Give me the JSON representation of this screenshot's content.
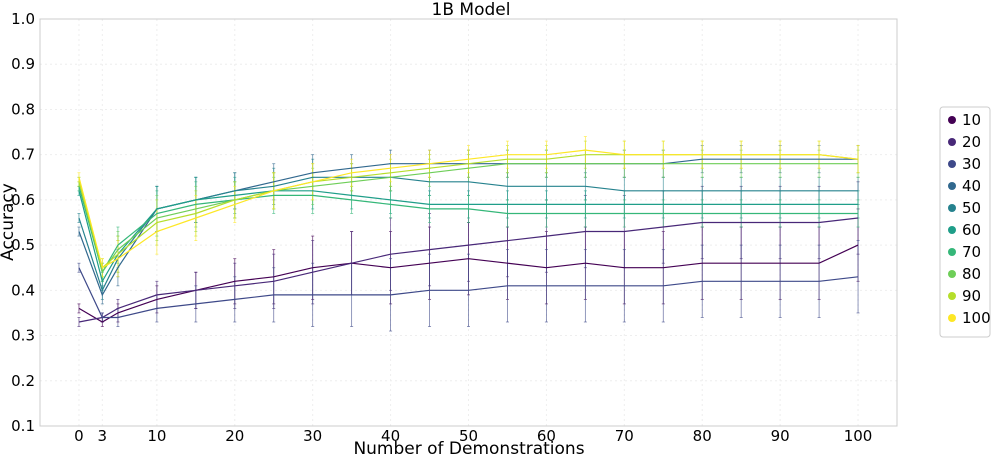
{
  "chart_data": {
    "type": "line",
    "title": "1B Model",
    "xlabel": "Number of Demonstrations",
    "ylabel": "Accuracy",
    "xlim": [
      -5,
      105
    ],
    "ylim": [
      0.1,
      1.0
    ],
    "xticks": [
      0,
      3,
      10,
      20,
      30,
      40,
      50,
      60,
      70,
      80,
      90,
      100
    ],
    "xtick_labels": [
      "0",
      "3",
      "10",
      "20",
      "30",
      "40",
      "50",
      "60",
      "70",
      "80",
      "90",
      "100"
    ],
    "yticks": [
      0.1,
      0.2,
      0.3,
      0.4,
      0.5,
      0.6,
      0.7,
      0.8,
      0.9,
      1.0
    ],
    "ytick_labels": [
      "0.1",
      "0.2",
      "0.3",
      "0.4",
      "0.5",
      "0.6",
      "0.7",
      "0.8",
      "0.9",
      "1.0"
    ],
    "grid": true,
    "error_bars": true,
    "legend_position": "right",
    "x": [
      0,
      3,
      5,
      10,
      15,
      20,
      25,
      30,
      35,
      40,
      45,
      50,
      55,
      60,
      65,
      70,
      75,
      80,
      85,
      90,
      95,
      100
    ],
    "series": [
      {
        "name": "10",
        "color": "#440154",
        "values": [
          0.36,
          0.33,
          0.35,
          0.38,
          0.4,
          0.42,
          0.43,
          0.45,
          0.46,
          0.45,
          0.46,
          0.47,
          0.46,
          0.45,
          0.46,
          0.45,
          0.45,
          0.46,
          0.46,
          0.46,
          0.46,
          0.5
        ],
        "errors": [
          0.01,
          0.01,
          0.02,
          0.03,
          0.04,
          0.05,
          0.06,
          0.07,
          0.07,
          0.08,
          0.08,
          0.08,
          0.08,
          0.08,
          0.08,
          0.08,
          0.08,
          0.08,
          0.08,
          0.08,
          0.08,
          0.08
        ]
      },
      {
        "name": "20",
        "color": "#482878",
        "values": [
          0.33,
          0.34,
          0.36,
          0.39,
          0.4,
          0.41,
          0.42,
          0.44,
          0.46,
          0.48,
          0.49,
          0.5,
          0.51,
          0.52,
          0.53,
          0.53,
          0.54,
          0.55,
          0.55,
          0.55,
          0.55,
          0.56
        ],
        "errors": [
          0.01,
          0.01,
          0.02,
          0.03,
          0.04,
          0.05,
          0.06,
          0.07,
          0.07,
          0.08,
          0.08,
          0.08,
          0.08,
          0.08,
          0.08,
          0.08,
          0.08,
          0.08,
          0.08,
          0.08,
          0.08,
          0.08
        ]
      },
      {
        "name": "30",
        "color": "#3e4989",
        "values": [
          0.45,
          0.34,
          0.34,
          0.36,
          0.37,
          0.38,
          0.39,
          0.39,
          0.39,
          0.39,
          0.4,
          0.4,
          0.41,
          0.41,
          0.41,
          0.41,
          0.41,
          0.42,
          0.42,
          0.42,
          0.42,
          0.43
        ],
        "errors": [
          0.01,
          0.01,
          0.02,
          0.03,
          0.04,
          0.05,
          0.06,
          0.07,
          0.07,
          0.08,
          0.08,
          0.08,
          0.08,
          0.08,
          0.08,
          0.08,
          0.08,
          0.08,
          0.08,
          0.08,
          0.08,
          0.08
        ]
      },
      {
        "name": "40",
        "color": "#31688e",
        "values": [
          0.53,
          0.39,
          0.45,
          0.58,
          0.6,
          0.62,
          0.64,
          0.66,
          0.67,
          0.68,
          0.68,
          0.68,
          0.68,
          0.68,
          0.68,
          0.68,
          0.68,
          0.69,
          0.69,
          0.69,
          0.69,
          0.69
        ],
        "errors": [
          0.01,
          0.02,
          0.04,
          0.05,
          0.05,
          0.04,
          0.04,
          0.04,
          0.03,
          0.03,
          0.03,
          0.03,
          0.03,
          0.03,
          0.03,
          0.03,
          0.03,
          0.03,
          0.03,
          0.03,
          0.03,
          0.03
        ]
      },
      {
        "name": "50",
        "color": "#26828e",
        "values": [
          0.56,
          0.4,
          0.47,
          0.58,
          0.6,
          0.62,
          0.63,
          0.65,
          0.65,
          0.65,
          0.64,
          0.64,
          0.63,
          0.63,
          0.63,
          0.62,
          0.62,
          0.62,
          0.62,
          0.62,
          0.62,
          0.62
        ],
        "errors": [
          0.01,
          0.02,
          0.04,
          0.05,
          0.05,
          0.04,
          0.04,
          0.04,
          0.03,
          0.03,
          0.03,
          0.03,
          0.03,
          0.03,
          0.03,
          0.03,
          0.03,
          0.03,
          0.03,
          0.03,
          0.03,
          0.03
        ]
      },
      {
        "name": "60",
        "color": "#1f9e89",
        "values": [
          0.62,
          0.42,
          0.48,
          0.58,
          0.6,
          0.61,
          0.62,
          0.62,
          0.61,
          0.6,
          0.59,
          0.59,
          0.59,
          0.59,
          0.59,
          0.59,
          0.59,
          0.59,
          0.59,
          0.59,
          0.59,
          0.59
        ],
        "errors": [
          0.01,
          0.02,
          0.04,
          0.05,
          0.05,
          0.04,
          0.04,
          0.04,
          0.03,
          0.03,
          0.03,
          0.03,
          0.03,
          0.03,
          0.03,
          0.03,
          0.03,
          0.03,
          0.03,
          0.03,
          0.03,
          0.03
        ]
      },
      {
        "name": "70",
        "color": "#35b779",
        "values": [
          0.63,
          0.44,
          0.5,
          0.57,
          0.59,
          0.6,
          0.61,
          0.61,
          0.6,
          0.59,
          0.58,
          0.58,
          0.57,
          0.57,
          0.57,
          0.57,
          0.57,
          0.57,
          0.57,
          0.57,
          0.57,
          0.57
        ],
        "errors": [
          0.01,
          0.02,
          0.04,
          0.05,
          0.05,
          0.04,
          0.04,
          0.04,
          0.03,
          0.03,
          0.03,
          0.03,
          0.03,
          0.03,
          0.03,
          0.03,
          0.03,
          0.03,
          0.03,
          0.03,
          0.03,
          0.03
        ]
      },
      {
        "name": "80",
        "color": "#6ece58",
        "values": [
          0.64,
          0.44,
          0.49,
          0.56,
          0.58,
          0.6,
          0.62,
          0.63,
          0.64,
          0.65,
          0.66,
          0.67,
          0.68,
          0.68,
          0.68,
          0.68,
          0.68,
          0.68,
          0.68,
          0.68,
          0.68,
          0.68
        ],
        "errors": [
          0.01,
          0.02,
          0.04,
          0.05,
          0.05,
          0.04,
          0.04,
          0.04,
          0.03,
          0.03,
          0.03,
          0.03,
          0.03,
          0.03,
          0.03,
          0.03,
          0.03,
          0.03,
          0.03,
          0.03,
          0.03,
          0.03
        ]
      },
      {
        "name": "90",
        "color": "#b5de2b",
        "values": [
          0.64,
          0.45,
          0.48,
          0.55,
          0.57,
          0.6,
          0.62,
          0.64,
          0.65,
          0.66,
          0.67,
          0.68,
          0.69,
          0.69,
          0.7,
          0.7,
          0.7,
          0.7,
          0.7,
          0.7,
          0.7,
          0.69
        ],
        "errors": [
          0.01,
          0.02,
          0.04,
          0.05,
          0.05,
          0.04,
          0.04,
          0.04,
          0.03,
          0.03,
          0.03,
          0.03,
          0.03,
          0.03,
          0.03,
          0.03,
          0.03,
          0.03,
          0.03,
          0.03,
          0.03,
          0.03
        ]
      },
      {
        "name": "100",
        "color": "#fde725",
        "values": [
          0.65,
          0.45,
          0.47,
          0.53,
          0.56,
          0.59,
          0.62,
          0.64,
          0.66,
          0.67,
          0.68,
          0.69,
          0.7,
          0.7,
          0.71,
          0.7,
          0.7,
          0.7,
          0.7,
          0.7,
          0.7,
          0.69
        ],
        "errors": [
          0.01,
          0.02,
          0.04,
          0.05,
          0.05,
          0.04,
          0.04,
          0.04,
          0.03,
          0.03,
          0.03,
          0.03,
          0.03,
          0.03,
          0.03,
          0.03,
          0.03,
          0.03,
          0.03,
          0.03,
          0.03,
          0.03
        ]
      }
    ]
  }
}
